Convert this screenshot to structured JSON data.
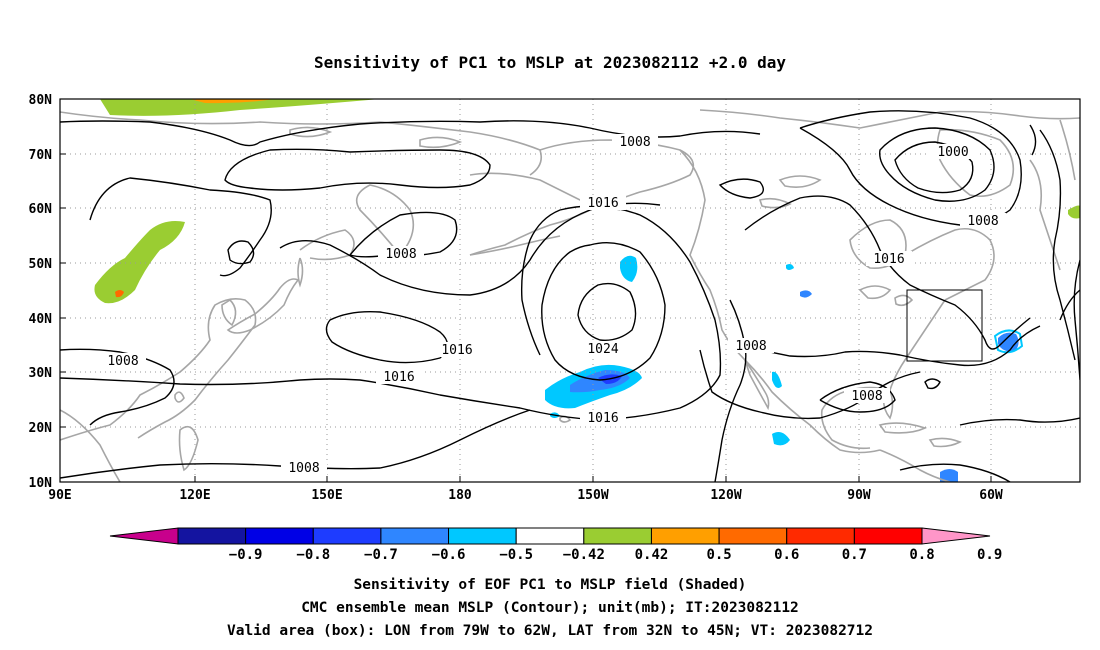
{
  "title": "Sensitivity of PC1 to MSLP at 2023082112 +2.0 day",
  "map": {
    "lat_ticks": [
      "80N",
      "70N",
      "60N",
      "50N",
      "40N",
      "30N",
      "20N",
      "10N"
    ],
    "lon_ticks": [
      "90E",
      "120E",
      "150E",
      "180",
      "150W",
      "120W",
      "90W",
      "60W"
    ],
    "contour_labels": [
      {
        "text": "1008",
        "at": "arctic"
      },
      {
        "text": "1000",
        "at": "labrador_low"
      },
      {
        "text": "1008",
        "at": "labrador_south"
      },
      {
        "text": "1016",
        "at": "north_pacific"
      },
      {
        "text": "1008",
        "at": "bering"
      },
      {
        "text": "1016",
        "at": "central_pacific_n"
      },
      {
        "text": "1016",
        "at": "central_pacific_s"
      },
      {
        "text": "1024",
        "at": "pacific_high"
      },
      {
        "text": "1016",
        "at": "pacific_high_s"
      },
      {
        "text": "1008",
        "at": "west_coast"
      },
      {
        "text": "1016",
        "at": "east_canada"
      },
      {
        "text": "1008",
        "at": "gulf_of_mexico"
      },
      {
        "text": "1008",
        "at": "china"
      },
      {
        "text": "1008",
        "at": "south_china_sea"
      }
    ],
    "valid_box": {
      "lon_from": "79W",
      "lon_to": "62W",
      "lat_from": "32N",
      "lat_to": "45N"
    },
    "colors": {
      "land_outline": "#a6a6a6",
      "contour": "#000000",
      "grid": "#9a9a9a"
    }
  },
  "colorbar": {
    "labels": [
      "-0.9",
      "-0.8",
      "-0.7",
      "-0.6",
      "-0.5",
      "-0.42",
      "0.42",
      "0.5",
      "0.6",
      "0.7",
      "0.8",
      "0.9"
    ],
    "colors": [
      "#c8008c",
      "#1414a0",
      "#0000e6",
      "#1e3cff",
      "#2f86ff",
      "#00c8ff",
      "#ffffff",
      "#9acd32",
      "#ff9f00",
      "#ff6a00",
      "#ff2a00",
      "#ff0000",
      "#ff96c8"
    ]
  },
  "captions": [
    "Sensitivity of EOF PC1 to MSLP field (Shaded)",
    "CMC ensemble mean MSLP (Contour); unit(mb); IT:2023082112",
    "Valid area (box): LON from 79W to 62W, LAT from 32N to 45N; VT: 2023082712"
  ]
}
